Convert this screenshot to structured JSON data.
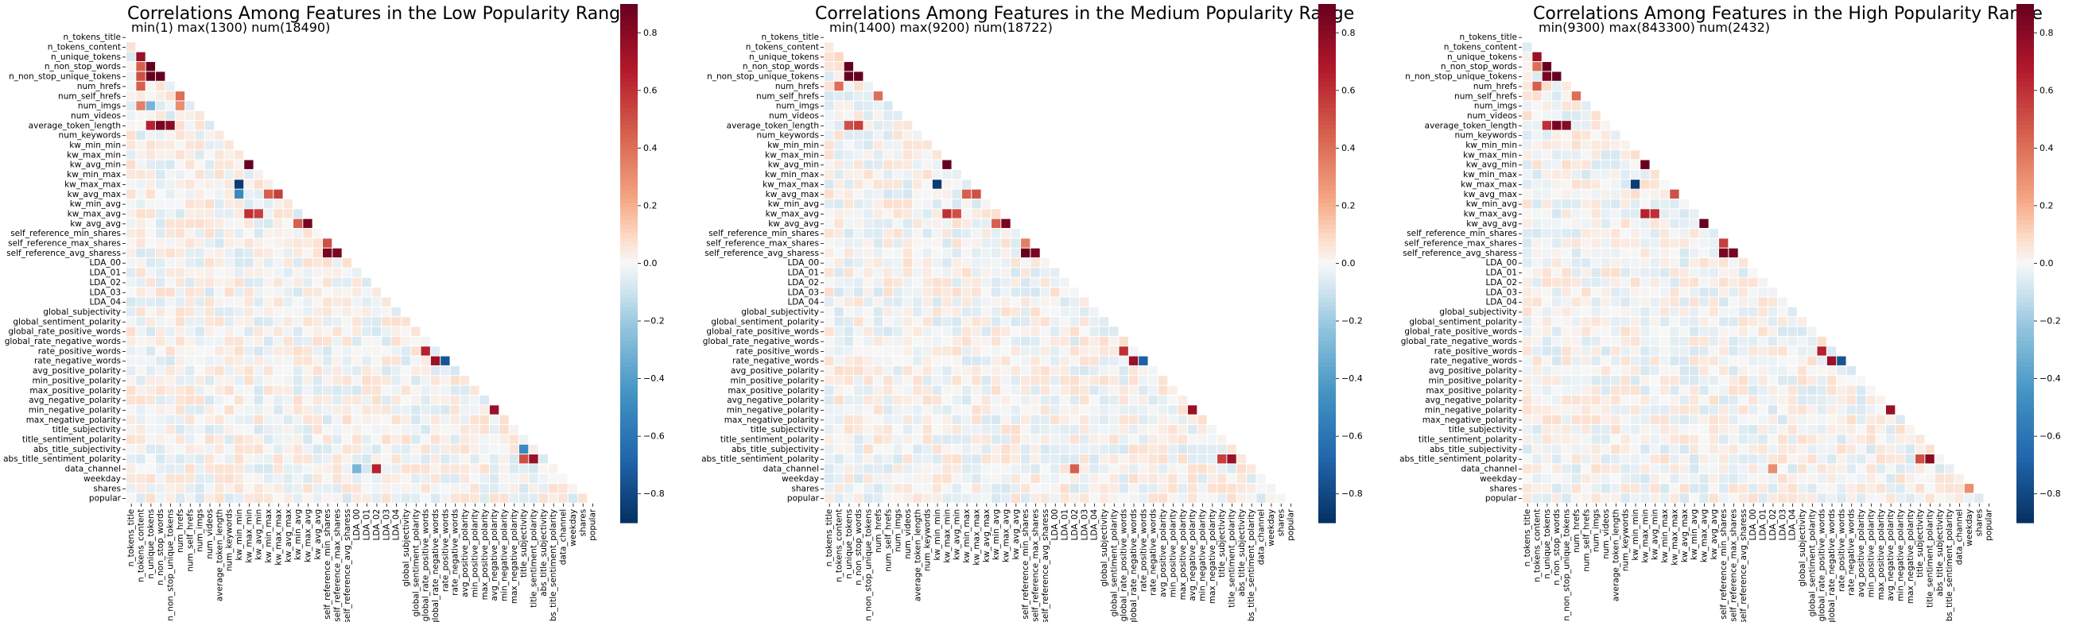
{
  "features": [
    "n_tokens_title",
    "n_tokens_content",
    "n_unique_tokens",
    "n_non_stop_words",
    "n_non_stop_unique_tokens",
    "num_hrefs",
    "num_self_hrefs",
    "num_imgs",
    "num_videos",
    "average_token_length",
    "num_keywords",
    "kw_min_min",
    "kw_max_min",
    "kw_avg_min",
    "kw_min_max",
    "kw_max_max",
    "kw_avg_max",
    "kw_min_avg",
    "kw_max_avg",
    "kw_avg_avg",
    "self_reference_min_shares",
    "self_reference_max_shares",
    "self_reference_avg_sharess",
    "LDA_00",
    "LDA_01",
    "LDA_02",
    "LDA_03",
    "LDA_04",
    "global_subjectivity",
    "global_sentiment_polarity",
    "global_rate_positive_words",
    "global_rate_negative_words",
    "rate_positive_words",
    "rate_negative_words",
    "avg_positive_polarity",
    "min_positive_polarity",
    "max_positive_polarity",
    "avg_negative_polarity",
    "min_negative_polarity",
    "max_negative_polarity",
    "title_subjectivity",
    "title_sentiment_polarity",
    "abs_title_subjectivity",
    "abs_title_sentiment_polarity",
    "data_channel",
    "weekday",
    "shares",
    "popular"
  ],
  "colorbar": {
    "ticks": [
      "0.8",
      "0.6",
      "0.4",
      "0.2",
      "0.0",
      "−0.2",
      "−0.4",
      "−0.6",
      "−0.8"
    ],
    "tick_values": [
      0.8,
      0.6,
      0.4,
      0.2,
      0.0,
      -0.2,
      -0.4,
      -0.6,
      -0.8
    ],
    "range": [
      -0.9,
      0.9
    ],
    "colormap": "RdBu_r"
  },
  "chart_data": [
    {
      "type": "heatmap",
      "title": "Correlations Among Features in the Low Popularity Range",
      "subtitle": "min(1) max(1300) num(18490)",
      "mask": "upper-triangle",
      "strong_cells": [
        {
          "row": "n_unique_tokens",
          "col": "n_tokens_content",
          "value": 0.75
        },
        {
          "row": "n_non_stop_words",
          "col": "n_tokens_content",
          "value": 0.45
        },
        {
          "row": "n_non_stop_words",
          "col": "n_unique_tokens",
          "value": 0.9
        },
        {
          "row": "n_non_stop_unique_tokens",
          "col": "n_tokens_content",
          "value": 0.5
        },
        {
          "row": "n_non_stop_unique_tokens",
          "col": "n_unique_tokens",
          "value": 0.9
        },
        {
          "row": "n_non_stop_unique_tokens",
          "col": "n_non_stop_words",
          "value": 0.9
        },
        {
          "row": "num_hrefs",
          "col": "n_tokens_content",
          "value": 0.45
        },
        {
          "row": "num_self_hrefs",
          "col": "num_hrefs",
          "value": 0.4
        },
        {
          "row": "num_imgs",
          "col": "n_tokens_content",
          "value": 0.35
        },
        {
          "row": "num_imgs",
          "col": "n_unique_tokens",
          "value": -0.3
        },
        {
          "row": "num_imgs",
          "col": "num_hrefs",
          "value": 0.3
        },
        {
          "row": "average_token_length",
          "col": "n_unique_tokens",
          "value": 0.65
        },
        {
          "row": "average_token_length",
          "col": "n_non_stop_words",
          "value": 0.85
        },
        {
          "row": "average_token_length",
          "col": "n_non_stop_unique_tokens",
          "value": 0.8
        },
        {
          "row": "kw_avg_min",
          "col": "kw_max_min",
          "value": 0.9
        },
        {
          "row": "kw_max_max",
          "col": "kw_min_min",
          "value": -0.85
        },
        {
          "row": "kw_avg_max",
          "col": "kw_min_min",
          "value": -0.5
        },
        {
          "row": "kw_avg_max",
          "col": "kw_max_max",
          "value": 0.55
        },
        {
          "row": "kw_avg_max",
          "col": "kw_min_max",
          "value": 0.45
        },
        {
          "row": "kw_max_avg",
          "col": "kw_max_min",
          "value": 0.6
        },
        {
          "row": "kw_max_avg",
          "col": "kw_avg_min",
          "value": 0.55
        },
        {
          "row": "kw_avg_avg",
          "col": "kw_max_avg",
          "value": 0.85
        },
        {
          "row": "kw_avg_avg",
          "col": "kw_min_avg",
          "value": 0.45
        },
        {
          "row": "self_reference_max_shares",
          "col": "self_reference_min_shares",
          "value": 0.5
        },
        {
          "row": "self_reference_avg_sharess",
          "col": "self_reference_min_shares",
          "value": 0.85
        },
        {
          "row": "self_reference_avg_sharess",
          "col": "self_reference_max_shares",
          "value": 0.85
        },
        {
          "row": "rate_positive_words",
          "col": "global_rate_positive_words",
          "value": 0.65
        },
        {
          "row": "rate_negative_words",
          "col": "global_rate_negative_words",
          "value": 0.75
        },
        {
          "row": "rate_negative_words",
          "col": "rate_positive_words",
          "value": -0.75
        },
        {
          "row": "min_negative_polarity",
          "col": "avg_negative_polarity",
          "value": 0.75
        },
        {
          "row": "abs_title_subjectivity",
          "col": "title_subjectivity",
          "value": -0.5
        },
        {
          "row": "abs_title_sentiment_polarity",
          "col": "title_sentiment_polarity",
          "value": 0.75
        },
        {
          "row": "abs_title_sentiment_polarity",
          "col": "title_subjectivity",
          "value": 0.5
        },
        {
          "row": "data_channel",
          "col": "LDA_00",
          "value": -0.3
        },
        {
          "row": "data_channel",
          "col": "LDA_02",
          "value": 0.65
        }
      ]
    },
    {
      "type": "heatmap",
      "title": "Correlations Among Features in the Medium Popularity Range",
      "subtitle": "min(1400) max(9200) num(18722)",
      "mask": "upper-triangle",
      "strong_cells": [
        {
          "row": "n_unique_tokens",
          "col": "n_tokens_content",
          "value": 0.1
        },
        {
          "row": "n_non_stop_words",
          "col": "n_unique_tokens",
          "value": 0.95
        },
        {
          "row": "n_non_stop_unique_tokens",
          "col": "n_unique_tokens",
          "value": 0.9
        },
        {
          "row": "n_non_stop_unique_tokens",
          "col": "n_non_stop_words",
          "value": 0.9
        },
        {
          "row": "num_hrefs",
          "col": "n_tokens_content",
          "value": 0.4
        },
        {
          "row": "num_self_hrefs",
          "col": "num_hrefs",
          "value": 0.4
        },
        {
          "row": "average_token_length",
          "col": "n_unique_tokens",
          "value": 0.5
        },
        {
          "row": "average_token_length",
          "col": "n_non_stop_words",
          "value": 0.55
        },
        {
          "row": "kw_avg_min",
          "col": "kw_max_min",
          "value": 0.95
        },
        {
          "row": "kw_max_max",
          "col": "kw_min_min",
          "value": -0.85
        },
        {
          "row": "kw_avg_max",
          "col": "kw_max_max",
          "value": 0.5
        },
        {
          "row": "kw_avg_max",
          "col": "kw_min_max",
          "value": 0.45
        },
        {
          "row": "kw_max_avg",
          "col": "kw_max_min",
          "value": 0.6
        },
        {
          "row": "kw_max_avg",
          "col": "kw_avg_min",
          "value": 0.5
        },
        {
          "row": "kw_avg_avg",
          "col": "kw_max_avg",
          "value": 0.85
        },
        {
          "row": "kw_avg_avg",
          "col": "kw_min_avg",
          "value": 0.45
        },
        {
          "row": "self_reference_max_shares",
          "col": "self_reference_min_shares",
          "value": 0.35
        },
        {
          "row": "self_reference_avg_sharess",
          "col": "self_reference_min_shares",
          "value": 0.9
        },
        {
          "row": "self_reference_avg_sharess",
          "col": "self_reference_max_shares",
          "value": 0.85
        },
        {
          "row": "rate_positive_words",
          "col": "global_rate_positive_words",
          "value": 0.6
        },
        {
          "row": "rate_negative_words",
          "col": "global_rate_negative_words",
          "value": 0.75
        },
        {
          "row": "rate_negative_words",
          "col": "rate_positive_words",
          "value": -0.7
        },
        {
          "row": "min_negative_polarity",
          "col": "avg_negative_polarity",
          "value": 0.75
        },
        {
          "row": "abs_title_sentiment_polarity",
          "col": "title_sentiment_polarity",
          "value": 0.75
        },
        {
          "row": "abs_title_sentiment_polarity",
          "col": "title_subjectivity",
          "value": 0.55
        },
        {
          "row": "data_channel",
          "col": "LDA_02",
          "value": 0.45
        }
      ]
    },
    {
      "type": "heatmap",
      "title": "Correlations Among Features in the High Popularity Range",
      "subtitle": "min(9300) max(843300) num(2432)",
      "mask": "upper-triangle",
      "strong_cells": [
        {
          "row": "n_unique_tokens",
          "col": "n_tokens_content",
          "value": 0.75
        },
        {
          "row": "n_non_stop_words",
          "col": "n_tokens_content",
          "value": 0.4
        },
        {
          "row": "n_non_stop_words",
          "col": "n_unique_tokens",
          "value": 0.9
        },
        {
          "row": "n_non_stop_unique_tokens",
          "col": "n_unique_tokens",
          "value": 0.85
        },
        {
          "row": "n_non_stop_unique_tokens",
          "col": "n_non_stop_words",
          "value": 0.9
        },
        {
          "row": "num_hrefs",
          "col": "n_tokens_content",
          "value": 0.45
        },
        {
          "row": "num_self_hrefs",
          "col": "num_hrefs",
          "value": 0.4
        },
        {
          "row": "average_token_length",
          "col": "n_unique_tokens",
          "value": 0.6
        },
        {
          "row": "average_token_length",
          "col": "n_non_stop_words",
          "value": 0.85
        },
        {
          "row": "average_token_length",
          "col": "n_non_stop_unique_tokens",
          "value": 0.8
        },
        {
          "row": "kw_avg_min",
          "col": "kw_max_min",
          "value": 0.9
        },
        {
          "row": "kw_max_max",
          "col": "kw_min_min",
          "value": -0.85
        },
        {
          "row": "kw_avg_max",
          "col": "kw_max_max",
          "value": 0.5
        },
        {
          "row": "kw_max_avg",
          "col": "kw_max_min",
          "value": 0.65
        },
        {
          "row": "kw_max_avg",
          "col": "kw_avg_min",
          "value": 0.6
        },
        {
          "row": "kw_avg_avg",
          "col": "kw_max_avg",
          "value": 0.9
        },
        {
          "row": "self_reference_max_shares",
          "col": "self_reference_min_shares",
          "value": 0.55
        },
        {
          "row": "self_reference_avg_sharess",
          "col": "self_reference_min_shares",
          "value": 0.85
        },
        {
          "row": "self_reference_avg_sharess",
          "col": "self_reference_max_shares",
          "value": 0.85
        },
        {
          "row": "rate_positive_words",
          "col": "global_rate_positive_words",
          "value": 0.65
        },
        {
          "row": "rate_negative_words",
          "col": "global_rate_negative_words",
          "value": 0.75
        },
        {
          "row": "rate_negative_words",
          "col": "rate_positive_words",
          "value": -0.75
        },
        {
          "row": "min_negative_polarity",
          "col": "avg_negative_polarity",
          "value": 0.75
        },
        {
          "row": "abs_title_sentiment_polarity",
          "col": "title_sentiment_polarity",
          "value": 0.8
        },
        {
          "row": "abs_title_sentiment_polarity",
          "col": "title_subjectivity",
          "value": 0.5
        },
        {
          "row": "data_channel",
          "col": "LDA_02",
          "value": 0.3
        },
        {
          "row": "shares",
          "col": "weekday",
          "value": 0.3
        }
      ]
    }
  ]
}
